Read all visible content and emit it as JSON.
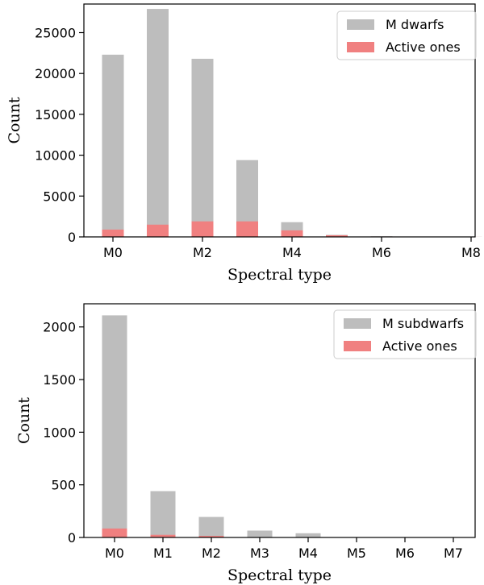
{
  "chart_data": [
    {
      "type": "bar",
      "stacked": false,
      "overlay": true,
      "categories": [
        "M0",
        "M1",
        "M2",
        "M3",
        "M4",
        "M5",
        "M6",
        "M7",
        "M8"
      ],
      "tick_labels": [
        "M0",
        "",
        "M2",
        "",
        "M4",
        "",
        "M6",
        "",
        "M8"
      ],
      "series": [
        {
          "name": "M dwarfs",
          "color": "#bdbdbd",
          "values": [
            22300,
            27900,
            21800,
            9400,
            1800,
            250,
            80,
            40,
            10
          ]
        },
        {
          "name": "Active ones",
          "color": "#f08080",
          "values": [
            900,
            1500,
            1900,
            1900,
            800,
            200,
            50,
            30,
            5
          ]
        }
      ],
      "xlabel": "Spectral type",
      "ylabel": "Count",
      "ylim": [
        0,
        28500
      ],
      "yticks": [
        0,
        5000,
        10000,
        15000,
        20000,
        25000
      ],
      "legend": "top-right",
      "grid": false
    },
    {
      "type": "bar",
      "stacked": false,
      "overlay": true,
      "categories": [
        "M0",
        "M1",
        "M2",
        "M3",
        "M4",
        "M5",
        "M6",
        "M7"
      ],
      "tick_labels": [
        "M0",
        "M1",
        "M2",
        "M3",
        "M4",
        "M5",
        "M6",
        "M7"
      ],
      "series": [
        {
          "name": "M subdwarfs",
          "color": "#bdbdbd",
          "values": [
            2110,
            440,
            195,
            65,
            40,
            2,
            1,
            1
          ]
        },
        {
          "name": "Active ones",
          "color": "#f08080",
          "values": [
            85,
            25,
            15,
            3,
            2,
            0,
            0,
            0
          ]
        }
      ],
      "xlabel": "Spectral type",
      "ylabel": "Count",
      "ylim": [
        0,
        2220
      ],
      "yticks": [
        0,
        500,
        1000,
        1500,
        2000
      ],
      "legend": "top-right",
      "grid": false
    }
  ]
}
